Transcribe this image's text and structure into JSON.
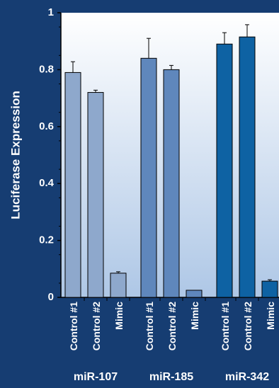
{
  "chart_data": {
    "type": "bar",
    "ylabel": "Luciferase Expression",
    "ylim": [
      0,
      1
    ],
    "yticks": [
      "0",
      "0.2",
      "0.4",
      "0.6",
      "0.8",
      "1"
    ],
    "grid": false,
    "background_gradient": [
      "#ffffff",
      "#aec7e6"
    ],
    "groups": [
      {
        "label": "miR-107",
        "color": "#8ea8cc",
        "categories": [
          "Control #1",
          "Control #2",
          "Mimic"
        ],
        "values": [
          0.79,
          0.72,
          0.085
        ],
        "errors": [
          0.038,
          0.008,
          0.005
        ]
      },
      {
        "label": "miR-185",
        "color": "#5f87bc",
        "categories": [
          "Control #1",
          "Control #2",
          "Mimic"
        ],
        "values": [
          0.84,
          0.8,
          0.025
        ],
        "errors": [
          0.07,
          0.015,
          0.0
        ]
      },
      {
        "label": "miR-342",
        "color": "#0e62a3",
        "categories": [
          "Control #1",
          "Control #2",
          "Mimic"
        ],
        "values": [
          0.89,
          0.915,
          0.057
        ],
        "errors": [
          0.04,
          0.043,
          0.005
        ]
      }
    ]
  }
}
